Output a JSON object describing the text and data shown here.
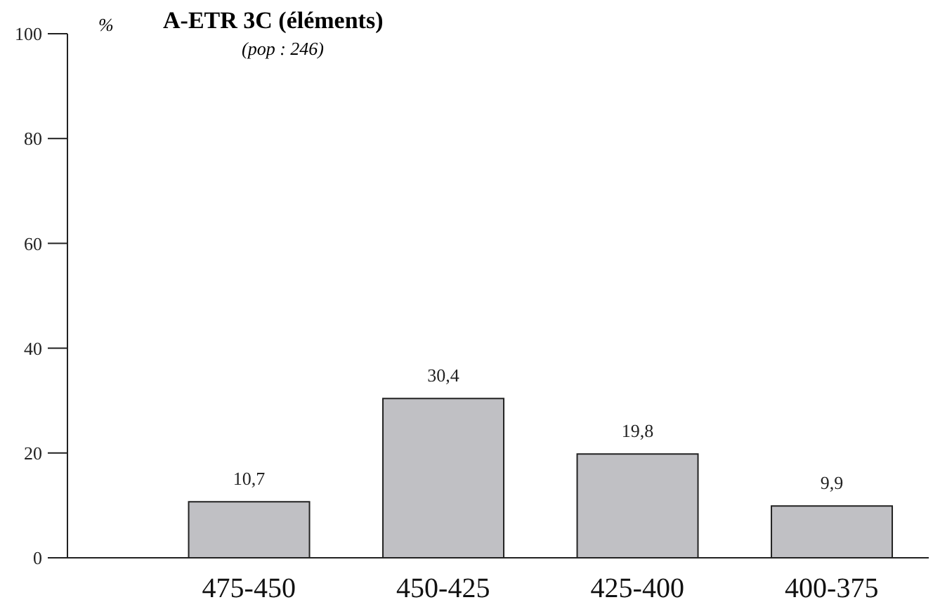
{
  "chart_data": {
    "type": "bar",
    "title": "A-ETR 3C (éléments)",
    "subtitle": "(pop : 246)",
    "ylabel": "%",
    "categories": [
      "475-450",
      "450-425",
      "425-400",
      "400-375"
    ],
    "values": [
      10.7,
      30.4,
      19.8,
      9.9
    ],
    "value_labels": [
      "10,7",
      "30,4",
      "19,8",
      "9,9"
    ],
    "color": "#c0c0c4",
    "ylim": [
      0,
      100
    ],
    "yticks": [
      0,
      20,
      40,
      60,
      80,
      100
    ],
    "grid": false
  }
}
